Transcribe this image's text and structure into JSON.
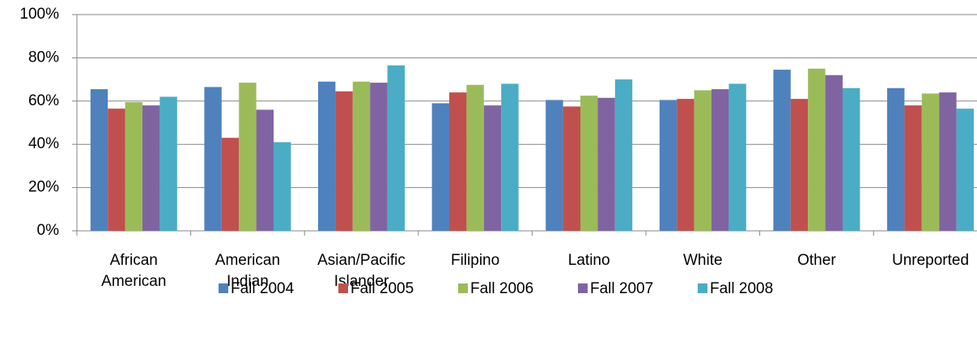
{
  "chart_data": {
    "type": "bar",
    "categories": [
      "African American",
      "American Indian",
      "Asian/Pacific Islander",
      "Filipino",
      "Latino",
      "White",
      "Other",
      "Unreported"
    ],
    "series": [
      {
        "name": "Fall 2004",
        "color": "#4f81bd",
        "values": [
          65.5,
          66.5,
          69,
          59,
          60.5,
          60.5,
          74.5,
          66
        ]
      },
      {
        "name": "Fall 2005",
        "color": "#c0504d",
        "values": [
          56.5,
          43,
          64.5,
          64,
          57.5,
          61,
          61,
          58
        ]
      },
      {
        "name": "Fall 2006",
        "color": "#9bbb59",
        "values": [
          59.5,
          68.5,
          69,
          67.5,
          62.5,
          65,
          75,
          63.5
        ]
      },
      {
        "name": "Fall 2007",
        "color": "#8064a2",
        "values": [
          58,
          56,
          68.5,
          58,
          61.5,
          65.5,
          72,
          64
        ]
      },
      {
        "name": "Fall 2008",
        "color": "#4bacc6",
        "values": [
          62,
          41,
          76.5,
          68,
          70,
          68,
          66,
          56.5
        ]
      }
    ],
    "ylim": [
      0,
      100
    ],
    "yticks": [
      {
        "value": 0,
        "label": "0%"
      },
      {
        "value": 20,
        "label": "20%"
      },
      {
        "value": 40,
        "label": "40%"
      },
      {
        "value": 60,
        "label": "60%"
      },
      {
        "value": 80,
        "label": "80%"
      },
      {
        "value": 100,
        "label": "100%"
      }
    ],
    "grid": true,
    "legend": "bottom"
  }
}
